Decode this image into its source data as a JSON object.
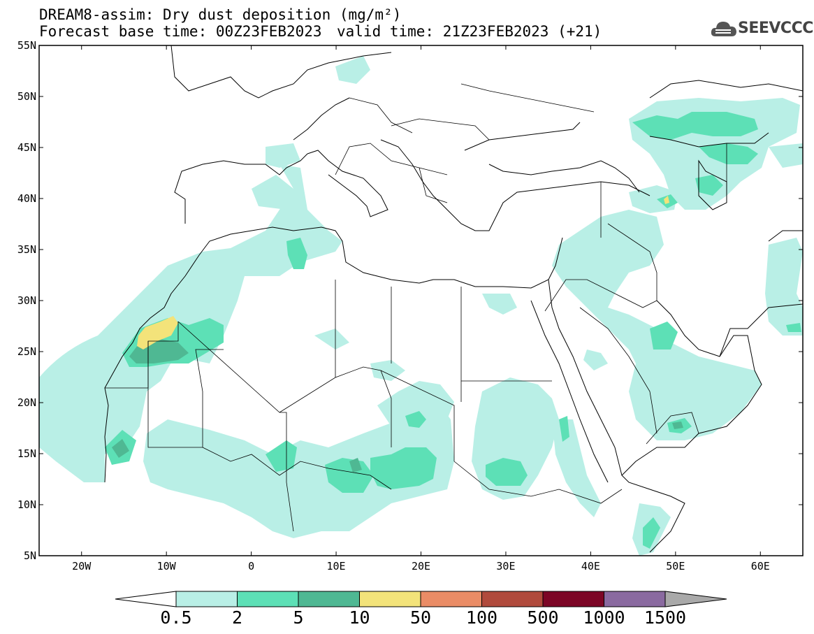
{
  "title": {
    "line1": "DREAM8-assim: Dry dust deposition (mg/m²)",
    "base_time": "Forecast base time: 00Z23FEB2023",
    "valid_time": "valid time: 21Z23FEB2023 (+21)"
  },
  "logo": {
    "text": "SEEVCCC",
    "icon": "cloud-icon"
  },
  "map": {
    "lon_range": [
      -25,
      65
    ],
    "lat_range": [
      5,
      55
    ],
    "lon_ticks": [
      {
        "value": -20,
        "label": "20W"
      },
      {
        "value": -10,
        "label": "10W"
      },
      {
        "value": 0,
        "label": "0"
      },
      {
        "value": 10,
        "label": "10E"
      },
      {
        "value": 20,
        "label": "20E"
      },
      {
        "value": 30,
        "label": "30E"
      },
      {
        "value": 40,
        "label": "40E"
      },
      {
        "value": 50,
        "label": "50E"
      },
      {
        "value": 60,
        "label": "60E"
      }
    ],
    "lat_ticks": [
      {
        "value": 55,
        "label": "55N"
      },
      {
        "value": 50,
        "label": "50N"
      },
      {
        "value": 45,
        "label": "45N"
      },
      {
        "value": 40,
        "label": "40N"
      },
      {
        "value": 35,
        "label": "35N"
      },
      {
        "value": 30,
        "label": "30N"
      },
      {
        "value": 25,
        "label": "25N"
      },
      {
        "value": 20,
        "label": "20N"
      },
      {
        "value": 15,
        "label": "15N"
      },
      {
        "value": 10,
        "label": "10N"
      },
      {
        "value": 5,
        "label": "5N"
      }
    ]
  },
  "colorbar": {
    "bins": [
      {
        "color": "#b9efe6"
      },
      {
        "color": "#5de0b6"
      },
      {
        "color": "#4fb893"
      },
      {
        "color": "#f3e37a"
      },
      {
        "color": "#ea8c66"
      },
      {
        "color": "#b04a3c"
      },
      {
        "color": "#7c0626"
      },
      {
        "color": "#8a6aa0"
      }
    ],
    "under_color": "#ffffff",
    "over_color": "#a9a9a9",
    "labels": [
      "0.5",
      "2",
      "5",
      "10",
      "50",
      "100",
      "500",
      "1000",
      "1500"
    ]
  }
}
